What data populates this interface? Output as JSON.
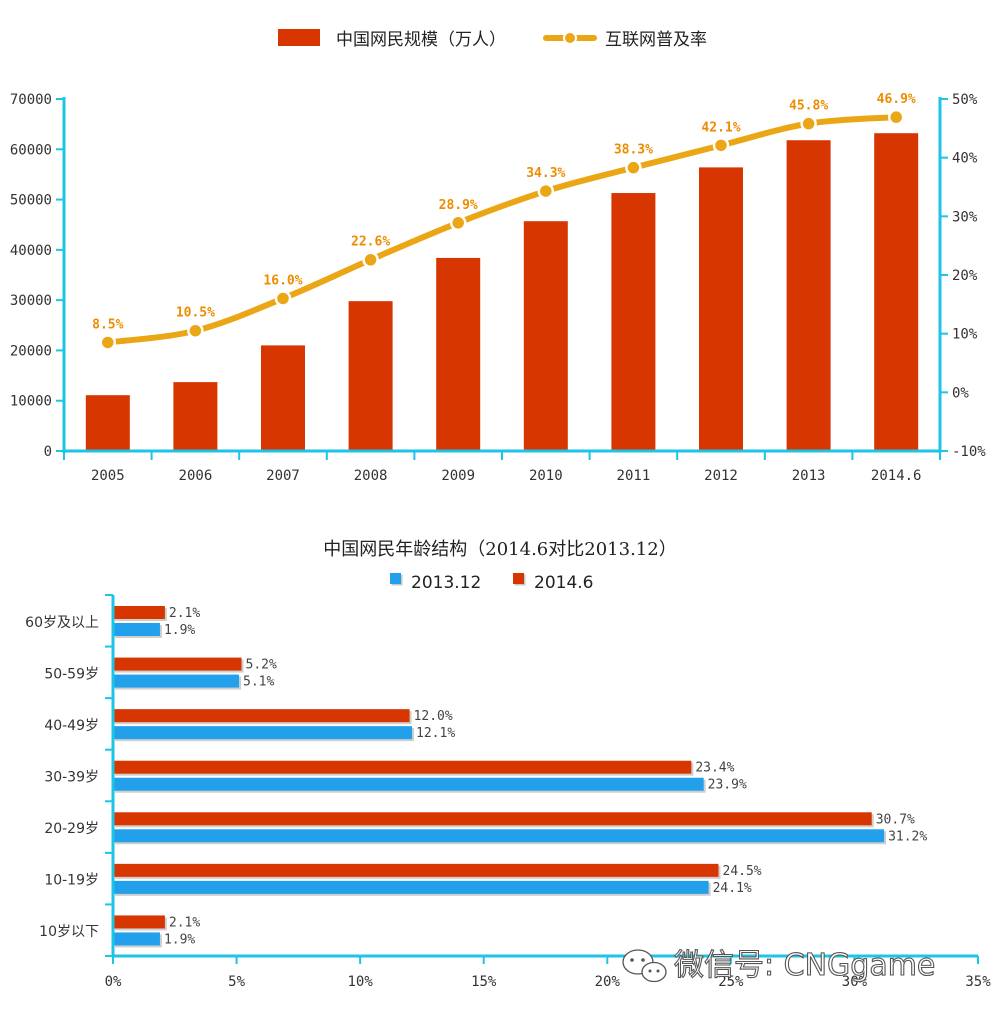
{
  "colors": {
    "bar": "#d83600",
    "line": "#eaa614",
    "line_marker": "#ffffff",
    "label": "#ee8c00",
    "axis": "#1cc4e6",
    "series_2013": "#22a0ec",
    "series_2014": "#d83600"
  },
  "chart_data": [
    {
      "type": "bar+line",
      "title": "",
      "categories": [
        "2005",
        "2006",
        "2007",
        "2008",
        "2009",
        "2010",
        "2011",
        "2012",
        "2013",
        "2014.6"
      ],
      "series": [
        {
          "name": "中国网民规模（万人）",
          "type": "bar",
          "axis": "left",
          "values": [
            11100,
            13700,
            21000,
            29800,
            38400,
            45700,
            51300,
            56400,
            61800,
            63200
          ]
        },
        {
          "name": "互联网普及率",
          "type": "line",
          "axis": "right",
          "values": [
            8.5,
            10.5,
            16.0,
            22.6,
            28.9,
            34.3,
            38.3,
            42.1,
            45.8,
            46.9
          ],
          "labels": [
            "8.5%",
            "10.5%",
            "16.0%",
            "22.6%",
            "28.9%",
            "34.3%",
            "38.3%",
            "42.1%",
            "45.8%",
            "46.9%"
          ]
        }
      ],
      "y_left": {
        "ylim": [
          0,
          70000
        ],
        "ticks": [
          "0",
          "10000",
          "20000",
          "30000",
          "40000",
          "50000",
          "60000",
          "70000"
        ]
      },
      "y_right": {
        "ylim": [
          -10,
          50
        ],
        "ticks": [
          "-10%",
          "0%",
          "10%",
          "20%",
          "30%",
          "40%",
          "50%"
        ]
      },
      "legend_position": "top-center"
    },
    {
      "type": "bar-horizontal",
      "title": "中国网民年龄结构（2014.6对比2013.12）",
      "categories": [
        "60岁及以上",
        "50-59岁",
        "40-49岁",
        "30-39岁",
        "20-29岁",
        "10-19岁",
        "10岁以下"
      ],
      "series": [
        {
          "name": "2014.6",
          "values": [
            2.1,
            5.2,
            12.0,
            23.4,
            30.7,
            24.5,
            2.1
          ],
          "labels": [
            "2.1%",
            "5.2%",
            "12.0%",
            "23.4%",
            "30.7%",
            "24.5%",
            "2.1%"
          ]
        },
        {
          "name": "2013.12",
          "values": [
            1.9,
            5.1,
            12.1,
            23.9,
            31.2,
            24.1,
            1.9
          ],
          "labels": [
            "1.9%",
            "5.1%",
            "12.1%",
            "23.9%",
            "31.2%",
            "24.1%",
            "1.9%"
          ]
        }
      ],
      "legend_order": [
        "2013.12",
        "2014.6"
      ],
      "xlim": [
        0,
        35
      ],
      "x_ticks": [
        "0%",
        "5%",
        "10%",
        "15%",
        "20%",
        "25%",
        "30%",
        "35%"
      ],
      "legend_position": "top-center"
    }
  ],
  "watermark": {
    "text": "微信号: CNGgame"
  }
}
